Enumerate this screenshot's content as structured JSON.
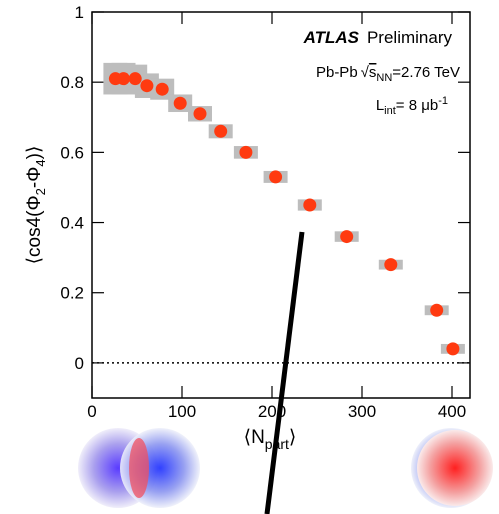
{
  "chart_data": {
    "type": "scatter",
    "y_label": {
      "open": "⟨cos4(Φ",
      "sub1": "2",
      "mid": "-Φ",
      "sub2": "4",
      "close": ")⟩"
    },
    "x_label": {
      "open": "⟨N",
      "sub": "part",
      "close": "⟩"
    },
    "annotations": {
      "experiment": "ATLAS",
      "status": "Preliminary",
      "system": "Pb-Pb",
      "root": "√",
      "s": "s",
      "s_sub": "NN",
      "energy": "=2.76 TeV",
      "lumi_L": "L",
      "lumi_sub": "int",
      "lumi": "= 8 μb",
      "lumi_sup": "-1"
    },
    "x": [
      26,
      35,
      48,
      61,
      78,
      98,
      120,
      143,
      171,
      204,
      242,
      283,
      332,
      383,
      401
    ],
    "series": [
      {
        "color": "#ff3a10",
        "error_color": "#bdbdbd",
        "values": [
          0.81,
          0.81,
          0.81,
          0.79,
          0.78,
          0.74,
          0.71,
          0.66,
          0.6,
          0.53,
          0.45,
          0.36,
          0.28,
          0.15,
          0.04
        ],
        "sys_errors": [
          0.045,
          0.045,
          0.04,
          0.035,
          0.03,
          0.025,
          0.022,
          0.02,
          0.018,
          0.017,
          0.016,
          0.015,
          0.014,
          0.014,
          0.014
        ]
      }
    ],
    "xlim": [
      0,
      420
    ],
    "ylim": [
      -0.1,
      1
    ],
    "xticks": [
      0,
      100,
      200,
      300,
      400
    ],
    "yticks": [
      0,
      0.2,
      0.4,
      0.6,
      0.8,
      1
    ],
    "reference_line": 0
  }
}
